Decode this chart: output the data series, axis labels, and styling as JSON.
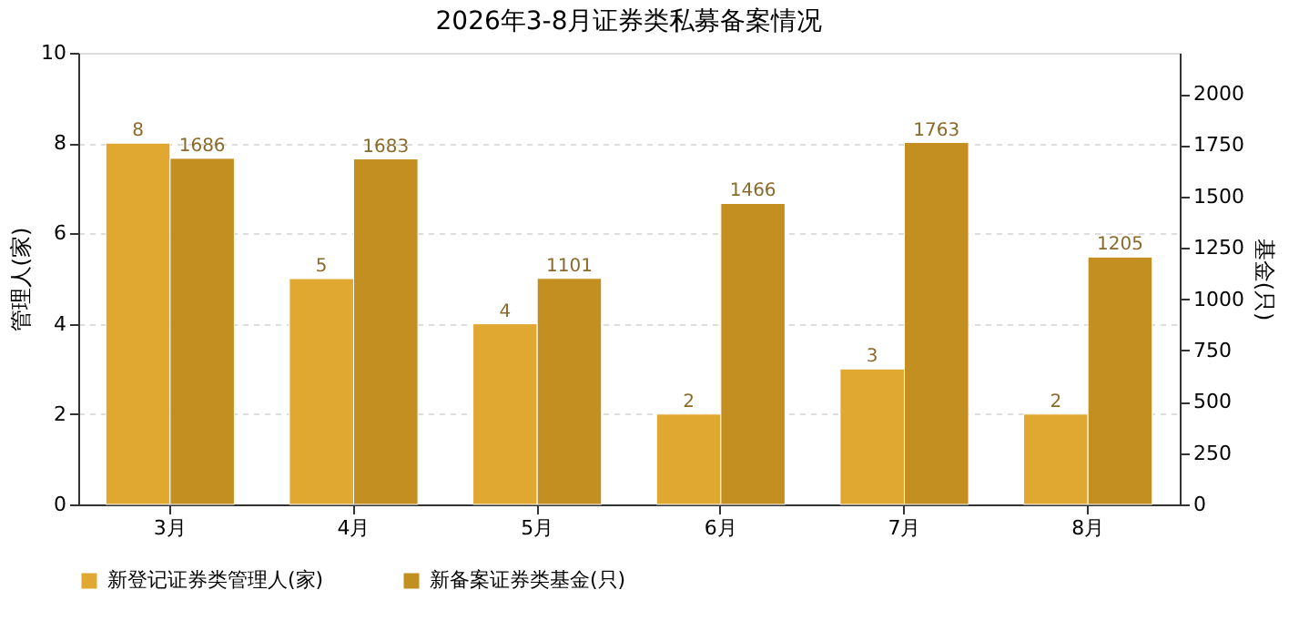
{
  "chart_data": {
    "type": "bar",
    "title": "2026年3-8月证券类私募备案情况",
    "categories": [
      "3月",
      "4月",
      "5月",
      "6月",
      "7月",
      "8月"
    ],
    "series": [
      {
        "name": "新登记证券类管理人(家)",
        "color": "#e0a830",
        "values": [
          8,
          5,
          4,
          2,
          3,
          2
        ]
      },
      {
        "name": "新备案证券类基金(只)",
        "color": "#c38f20",
        "axis": "y2",
        "values": [
          1686,
          1683,
          1101,
          1466,
          1763,
          1205
        ]
      }
    ],
    "ylabel": "管理人(家)",
    "y2label": "基金(只)",
    "ylim": [
      0,
      10
    ],
    "yticks": [
      0,
      2,
      4,
      6,
      8,
      10
    ],
    "y2lim": [
      0,
      2200
    ],
    "y2ticks": [
      0,
      250,
      500,
      750,
      1000,
      1250,
      1500,
      1750,
      2000
    ],
    "grid": "y",
    "data_labels": true,
    "legend": "bottom"
  }
}
